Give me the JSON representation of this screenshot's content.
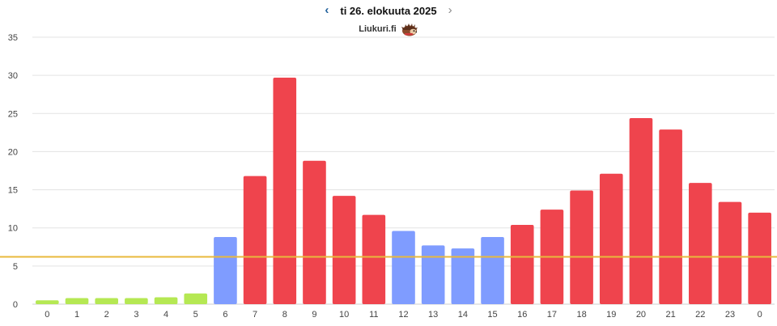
{
  "header": {
    "prev_icon": "chevron-left-icon",
    "next_icon": "chevron-right-icon",
    "date_title": "ti 26. elokuuta 2025",
    "brand_name": "Liukuri.fi",
    "logo_icon": "hedgehog-logo-icon"
  },
  "chart_data": {
    "type": "bar",
    "categories": [
      "0",
      "1",
      "2",
      "3",
      "4",
      "5",
      "6",
      "7",
      "8",
      "9",
      "10",
      "11",
      "12",
      "13",
      "14",
      "15",
      "16",
      "17",
      "18",
      "19",
      "20",
      "21",
      "22",
      "23",
      "0"
    ],
    "values": [
      0.5,
      0.8,
      0.8,
      0.8,
      0.9,
      1.4,
      8.8,
      16.8,
      29.7,
      18.8,
      14.2,
      11.7,
      9.6,
      7.7,
      7.3,
      8.8,
      10.4,
      12.4,
      14.9,
      17.1,
      24.4,
      22.9,
      15.9,
      13.4,
      12.0
    ],
    "bar_colors": [
      "#b5e853",
      "#b5e853",
      "#b5e853",
      "#b5e853",
      "#b5e853",
      "#b5e853",
      "#7f9cff",
      "#ef444d",
      "#ef444d",
      "#ef444d",
      "#ef444d",
      "#ef444d",
      "#7f9cff",
      "#7f9cff",
      "#7f9cff",
      "#7f9cff",
      "#ef444d",
      "#ef444d",
      "#ef444d",
      "#ef444d",
      "#ef444d",
      "#ef444d",
      "#ef444d",
      "#ef444d",
      "#ef444d"
    ],
    "colors": {
      "low": "#b5e853",
      "mid": "#7f9cff",
      "high": "#ef444d",
      "reference_line": "#e8b93c"
    },
    "reference_line_value": 6.2,
    "ylim": [
      0,
      35
    ],
    "yticks": [
      0,
      5,
      10,
      15,
      20,
      25,
      30,
      35
    ],
    "grid": true,
    "title": "",
    "xlabel": "",
    "ylabel": ""
  }
}
